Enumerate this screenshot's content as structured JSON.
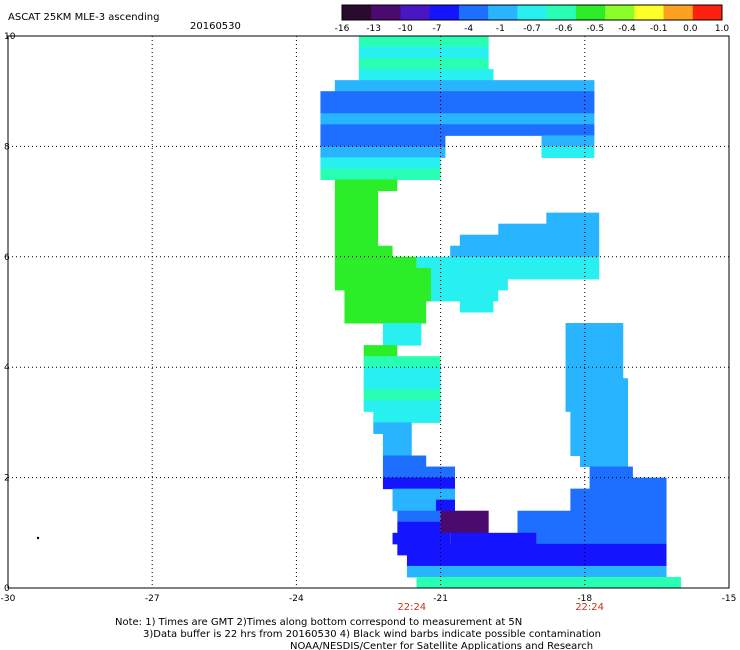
{
  "chart_data": {
    "type": "heatmap",
    "title": "ASCAT 25KM MLE-3 ascending",
    "date": "20160530",
    "xlim": [
      -30,
      -15
    ],
    "ylim": [
      0,
      10
    ],
    "x_ticks": [
      "-30",
      "-27",
      "-24",
      "-21",
      "-18",
      "-15"
    ],
    "y_ticks": [
      "0",
      "2",
      "4",
      "6",
      "8",
      "10"
    ],
    "x_tick_values": [
      -30,
      -27,
      -24,
      -21,
      -18,
      -15
    ],
    "y_tick_values": [
      0,
      2,
      4,
      6,
      8,
      10
    ],
    "grid": true,
    "colorbar": {
      "labels": [
        "-16",
        "-13",
        "-10",
        "-7",
        "-4",
        "-1",
        "-0.7",
        "-0.6",
        "-0.5",
        "-0.4",
        "-0.1",
        "0.0",
        "1.0"
      ],
      "colors": [
        "#2a0a2e",
        "#4b0b6e",
        "#4a16c4",
        "#1414ff",
        "#1e6eff",
        "#28b4ff",
        "#28f0f0",
        "#28ffb4",
        "#2cee28",
        "#8cff28",
        "#ffff28",
        "#ffa020",
        "#ff2010"
      ]
    },
    "time_labels": [
      {
        "x": -21.6,
        "label": "22:24"
      },
      {
        "x": -17.9,
        "label": "22:24"
      }
    ],
    "swath_rows": [
      {
        "y": 9.9,
        "x0": -22.7,
        "x1": -20.0,
        "level": 7
      },
      {
        "y": 9.7,
        "x0": -22.7,
        "x1": -20.0,
        "level": 6
      },
      {
        "y": 9.5,
        "x0": -22.7,
        "x1": -20.0,
        "level": 7
      },
      {
        "y": 9.3,
        "x0": -22.7,
        "x1": -19.9,
        "level": 6
      },
      {
        "y": 9.1,
        "x0": -23.2,
        "x1": -17.8,
        "level": 5
      },
      {
        "y": 8.9,
        "x0": -23.5,
        "x1": -17.8,
        "level": 4
      },
      {
        "y": 8.7,
        "x0": -23.5,
        "x1": -17.8,
        "level": 4
      },
      {
        "y": 8.5,
        "x0": -23.5,
        "x1": -17.8,
        "level": 5
      },
      {
        "y": 8.3,
        "x0": -23.5,
        "x1": -17.8,
        "level": 4
      },
      {
        "y": 8.1,
        "x0": -23.5,
        "x1": -20.9,
        "level": 4
      },
      {
        "y": 8.1,
        "x0": -18.9,
        "x1": -17.8,
        "level": 5
      },
      {
        "y": 7.9,
        "x0": -23.5,
        "x1": -20.9,
        "level": 5
      },
      {
        "y": 7.9,
        "x0": -18.9,
        "x1": -17.8,
        "level": 6
      },
      {
        "y": 7.7,
        "x0": -23.5,
        "x1": -21.0,
        "level": 6
      },
      {
        "y": 7.5,
        "x0": -23.5,
        "x1": -21.0,
        "level": 7
      },
      {
        "y": 7.3,
        "x0": -23.2,
        "x1": -21.9,
        "level": 8
      },
      {
        "y": 7.1,
        "x0": -23.2,
        "x1": -22.3,
        "level": 8
      },
      {
        "y": 6.9,
        "x0": -23.2,
        "x1": -22.3,
        "level": 8
      },
      {
        "y": 6.7,
        "x0": -23.2,
        "x1": -22.3,
        "level": 8
      },
      {
        "y": 6.7,
        "x0": -18.8,
        "x1": -17.7,
        "level": 5
      },
      {
        "y": 6.5,
        "x0": -23.2,
        "x1": -22.3,
        "level": 8
      },
      {
        "y": 6.5,
        "x0": -19.8,
        "x1": -17.7,
        "level": 5
      },
      {
        "y": 6.3,
        "x0": -23.2,
        "x1": -22.3,
        "level": 8
      },
      {
        "y": 6.3,
        "x0": -20.6,
        "x1": -17.7,
        "level": 5
      },
      {
        "y": 6.1,
        "x0": -23.2,
        "x1": -22.0,
        "level": 8
      },
      {
        "y": 6.1,
        "x0": -20.8,
        "x1": -17.7,
        "level": 5
      },
      {
        "y": 5.9,
        "x0": -23.2,
        "x1": -21.5,
        "level": 8
      },
      {
        "y": 5.9,
        "x0": -21.5,
        "x1": -17.7,
        "level": 6
      },
      {
        "y": 5.7,
        "x0": -23.2,
        "x1": -21.2,
        "level": 8
      },
      {
        "y": 5.7,
        "x0": -21.2,
        "x1": -17.7,
        "level": 6
      },
      {
        "y": 5.5,
        "x0": -23.2,
        "x1": -21.2,
        "level": 8
      },
      {
        "y": 5.5,
        "x0": -21.2,
        "x1": -19.6,
        "level": 6
      },
      {
        "y": 5.3,
        "x0": -23.0,
        "x1": -21.2,
        "level": 8
      },
      {
        "y": 5.3,
        "x0": -21.2,
        "x1": -19.8,
        "level": 6
      },
      {
        "y": 5.1,
        "x0": -23.0,
        "x1": -21.3,
        "level": 8
      },
      {
        "y": 5.1,
        "x0": -20.6,
        "x1": -19.9,
        "level": 6
      },
      {
        "y": 4.9,
        "x0": -23.0,
        "x1": -21.3,
        "level": 8
      },
      {
        "y": 4.7,
        "x0": -22.2,
        "x1": -21.4,
        "level": 6
      },
      {
        "y": 4.7,
        "x0": -18.4,
        "x1": -17.2,
        "level": 5
      },
      {
        "y": 4.5,
        "x0": -22.2,
        "x1": -21.4,
        "level": 6
      },
      {
        "y": 4.5,
        "x0": -18.4,
        "x1": -17.2,
        "level": 5
      },
      {
        "y": 4.3,
        "x0": -22.6,
        "x1": -21.9,
        "level": 8
      },
      {
        "y": 4.3,
        "x0": -18.4,
        "x1": -17.2,
        "level": 5
      },
      {
        "y": 4.1,
        "x0": -22.6,
        "x1": -21.0,
        "level": 7
      },
      {
        "y": 4.1,
        "x0": -18.4,
        "x1": -17.2,
        "level": 5
      },
      {
        "y": 3.9,
        "x0": -22.6,
        "x1": -21.0,
        "level": 6
      },
      {
        "y": 3.9,
        "x0": -18.4,
        "x1": -17.2,
        "level": 5
      },
      {
        "y": 3.7,
        "x0": -22.6,
        "x1": -21.0,
        "level": 6
      },
      {
        "y": 3.7,
        "x0": -18.4,
        "x1": -17.1,
        "level": 5
      },
      {
        "y": 3.5,
        "x0": -22.6,
        "x1": -21.0,
        "level": 7
      },
      {
        "y": 3.5,
        "x0": -18.4,
        "x1": -17.1,
        "level": 5
      },
      {
        "y": 3.3,
        "x0": -22.6,
        "x1": -21.0,
        "level": 6
      },
      {
        "y": 3.3,
        "x0": -18.4,
        "x1": -17.1,
        "level": 5
      },
      {
        "y": 3.1,
        "x0": -22.4,
        "x1": -21.0,
        "level": 6
      },
      {
        "y": 3.1,
        "x0": -18.3,
        "x1": -17.1,
        "level": 5
      },
      {
        "y": 2.9,
        "x0": -22.4,
        "x1": -21.6,
        "level": 5
      },
      {
        "y": 2.9,
        "x0": -18.3,
        "x1": -17.1,
        "level": 5
      },
      {
        "y": 2.7,
        "x0": -22.2,
        "x1": -21.6,
        "level": 5
      },
      {
        "y": 2.7,
        "x0": -18.3,
        "x1": -17.1,
        "level": 5
      },
      {
        "y": 2.5,
        "x0": -22.2,
        "x1": -21.6,
        "level": 5
      },
      {
        "y": 2.5,
        "x0": -18.3,
        "x1": -17.1,
        "level": 5
      },
      {
        "y": 2.3,
        "x0": -22.2,
        "x1": -21.3,
        "level": 4
      },
      {
        "y": 2.3,
        "x0": -18.1,
        "x1": -17.1,
        "level": 5
      },
      {
        "y": 2.1,
        "x0": -22.2,
        "x1": -20.7,
        "level": 4
      },
      {
        "y": 2.1,
        "x0": -17.9,
        "x1": -17.0,
        "level": 4
      },
      {
        "y": 1.9,
        "x0": -22.2,
        "x1": -20.7,
        "level": 3
      },
      {
        "y": 1.9,
        "x0": -17.9,
        "x1": -16.3,
        "level": 4
      },
      {
        "y": 1.7,
        "x0": -22.0,
        "x1": -20.7,
        "level": 5
      },
      {
        "y": 1.7,
        "x0": -18.3,
        "x1": -16.3,
        "level": 4
      },
      {
        "y": 1.5,
        "x0": -22.0,
        "x1": -21.1,
        "level": 5
      },
      {
        "y": 1.5,
        "x0": -21.1,
        "x1": -20.7,
        "level": 3
      },
      {
        "y": 1.5,
        "x0": -18.3,
        "x1": -16.3,
        "level": 4
      },
      {
        "y": 1.3,
        "x0": -21.9,
        "x1": -21.0,
        "level": 4
      },
      {
        "y": 1.3,
        "x0": -21.0,
        "x1": -20.0,
        "level": 1
      },
      {
        "y": 1.3,
        "x0": -19.4,
        "x1": -16.3,
        "level": 4
      },
      {
        "y": 1.1,
        "x0": -21.9,
        "x1": -21.0,
        "level": 3
      },
      {
        "y": 1.1,
        "x0": -21.0,
        "x1": -20.0,
        "level": 1
      },
      {
        "y": 1.1,
        "x0": -19.4,
        "x1": -16.3,
        "level": 4
      },
      {
        "y": 0.9,
        "x0": -22.0,
        "x1": -20.8,
        "level": 3
      },
      {
        "y": 0.9,
        "x0": -20.8,
        "x1": -19.0,
        "level": 3
      },
      {
        "y": 0.9,
        "x0": -19.0,
        "x1": -16.3,
        "level": 4
      },
      {
        "y": 0.7,
        "x0": -21.9,
        "x1": -16.3,
        "level": 3
      },
      {
        "y": 0.5,
        "x0": -21.7,
        "x1": -16.3,
        "level": 3
      },
      {
        "y": 0.3,
        "x0": -21.7,
        "x1": -16.3,
        "level": 5
      },
      {
        "y": 0.1,
        "x0": -21.5,
        "x1": -16.0,
        "level": 7
      }
    ]
  },
  "notes": {
    "line1": "Note: 1) Times are GMT 2)Times along bottom correspond to measurement at 5N",
    "line2": "3)Data buffer is 22 hrs from 20160530 4) Black wind barbs indicate possible contamination",
    "line3": "NOAA/NESDIS/Center for Satellite Applications and Research"
  }
}
